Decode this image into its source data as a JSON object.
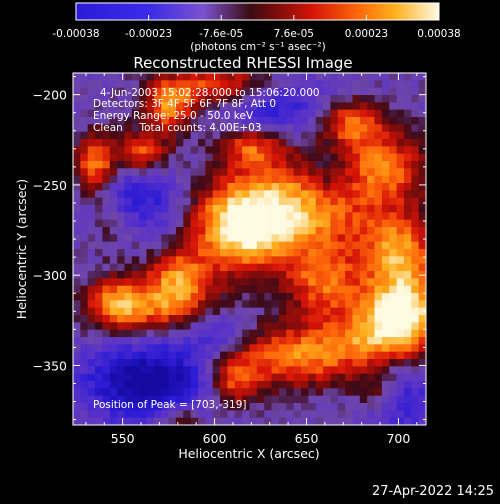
{
  "colorbar": {
    "tick_labels": [
      "-0.00038",
      "-0.00023",
      "-7.6e-05",
      "7.6e-05",
      "0.00023",
      "0.00038"
    ],
    "unit_label": "(photons cm⁻² s⁻¹ asec⁻²)",
    "range": [
      -0.00038,
      0.00038
    ]
  },
  "image_info": {
    "time_range": "4-Jun-2003 15:02:28.000 to 15:06:20.000",
    "detectors": "Detectors: 3F 4F 5F 6F 7F 8F, Att 0",
    "energy_range": "Energy Range: 25.0 - 50.0 keV",
    "clean_counts": "Clean     Total counts: 4.00E+03",
    "peak_position": "Position of Peak = [703,-319]"
  },
  "footer": {
    "date": "27-Apr-2022 14:25"
  },
  "chart_data": {
    "type": "heatmap",
    "title": "Reconstructed RHESSI Image",
    "xlabel": "Heliocentric X (arcsec)",
    "ylabel": "Heliocentric Y (arcsec)",
    "xlim": [
      523,
      715
    ],
    "ylim": [
      -383,
      -188
    ],
    "xticks": [
      550,
      600,
      650,
      700
    ],
    "yticks": [
      -350,
      -300,
      -250,
      -200
    ],
    "xtick_labels": [
      "550",
      "600",
      "650",
      "700"
    ],
    "ytick_labels": [
      "−350",
      "−300",
      "−250",
      "−200"
    ],
    "grid": false,
    "peak": [
      703,
      -319
    ],
    "bright_regions": [
      {
        "x": 640,
        "y": -265,
        "sx": 30,
        "sy": 20,
        "amp": 0.0004
      },
      {
        "x": 612,
        "y": -275,
        "sx": 18,
        "sy": 16,
        "amp": 0.0003
      },
      {
        "x": 660,
        "y": -305,
        "sx": 14,
        "sy": 12,
        "amp": 0.00025
      },
      {
        "x": 703,
        "y": -319,
        "sx": 15,
        "sy": 16,
        "amp": 0.00042
      },
      {
        "x": 685,
        "y": -335,
        "sx": 22,
        "sy": 14,
        "amp": 0.00025
      },
      {
        "x": 700,
        "y": -285,
        "sx": 14,
        "sy": 14,
        "amp": 0.0003
      },
      {
        "x": 690,
        "y": -240,
        "sx": 18,
        "sy": 14,
        "amp": 0.0003
      },
      {
        "x": 675,
        "y": -215,
        "sx": 12,
        "sy": 8,
        "amp": 0.00028
      },
      {
        "x": 570,
        "y": -318,
        "sx": 24,
        "sy": 10,
        "amp": 0.0003
      },
      {
        "x": 580,
        "y": -300,
        "sx": 12,
        "sy": 10,
        "amp": 0.00028
      },
      {
        "x": 545,
        "y": -315,
        "sx": 10,
        "sy": 10,
        "amp": 0.00022
      },
      {
        "x": 535,
        "y": -240,
        "sx": 8,
        "sy": 12,
        "amp": 0.00035
      },
      {
        "x": 560,
        "y": -232,
        "sx": 10,
        "sy": 8,
        "amp": 0.0003
      },
      {
        "x": 620,
        "y": -228,
        "sx": 12,
        "sy": 8,
        "amp": 0.00025
      },
      {
        "x": 605,
        "y": -195,
        "sx": 22,
        "sy": 8,
        "amp": 0.0003
      },
      {
        "x": 575,
        "y": -207,
        "sx": 10,
        "sy": 10,
        "amp": 0.0003
      },
      {
        "x": 640,
        "y": -345,
        "sx": 25,
        "sy": 12,
        "amp": 0.0003
      },
      {
        "x": 610,
        "y": -360,
        "sx": 10,
        "sy": 10,
        "amp": 0.00025
      },
      {
        "x": 580,
        "y": -380,
        "sx": 10,
        "sy": 8,
        "amp": 0.0002
      },
      {
        "x": 690,
        "y": -365,
        "sx": 10,
        "sy": 8,
        "amp": 0.0002
      },
      {
        "x": 545,
        "y": -270,
        "sx": 12,
        "sy": 12,
        "amp": 0.00018
      }
    ],
    "dark_regions": [
      {
        "x": 565,
        "y": -360,
        "sx": 25,
        "sy": 15,
        "amp": -0.00035
      },
      {
        "x": 555,
        "y": -260,
        "sx": 20,
        "sy": 15,
        "amp": -0.00025
      },
      {
        "x": 630,
        "y": -205,
        "sx": 20,
        "sy": 12,
        "amp": -0.00022
      },
      {
        "x": 700,
        "y": -365,
        "sx": 15,
        "sy": 15,
        "amp": -0.00022
      },
      {
        "x": 665,
        "y": -245,
        "sx": 12,
        "sy": 10,
        "amp": -0.00015
      },
      {
        "x": 600,
        "y": -330,
        "sx": 15,
        "sy": 10,
        "amp": -0.00018
      }
    ]
  }
}
